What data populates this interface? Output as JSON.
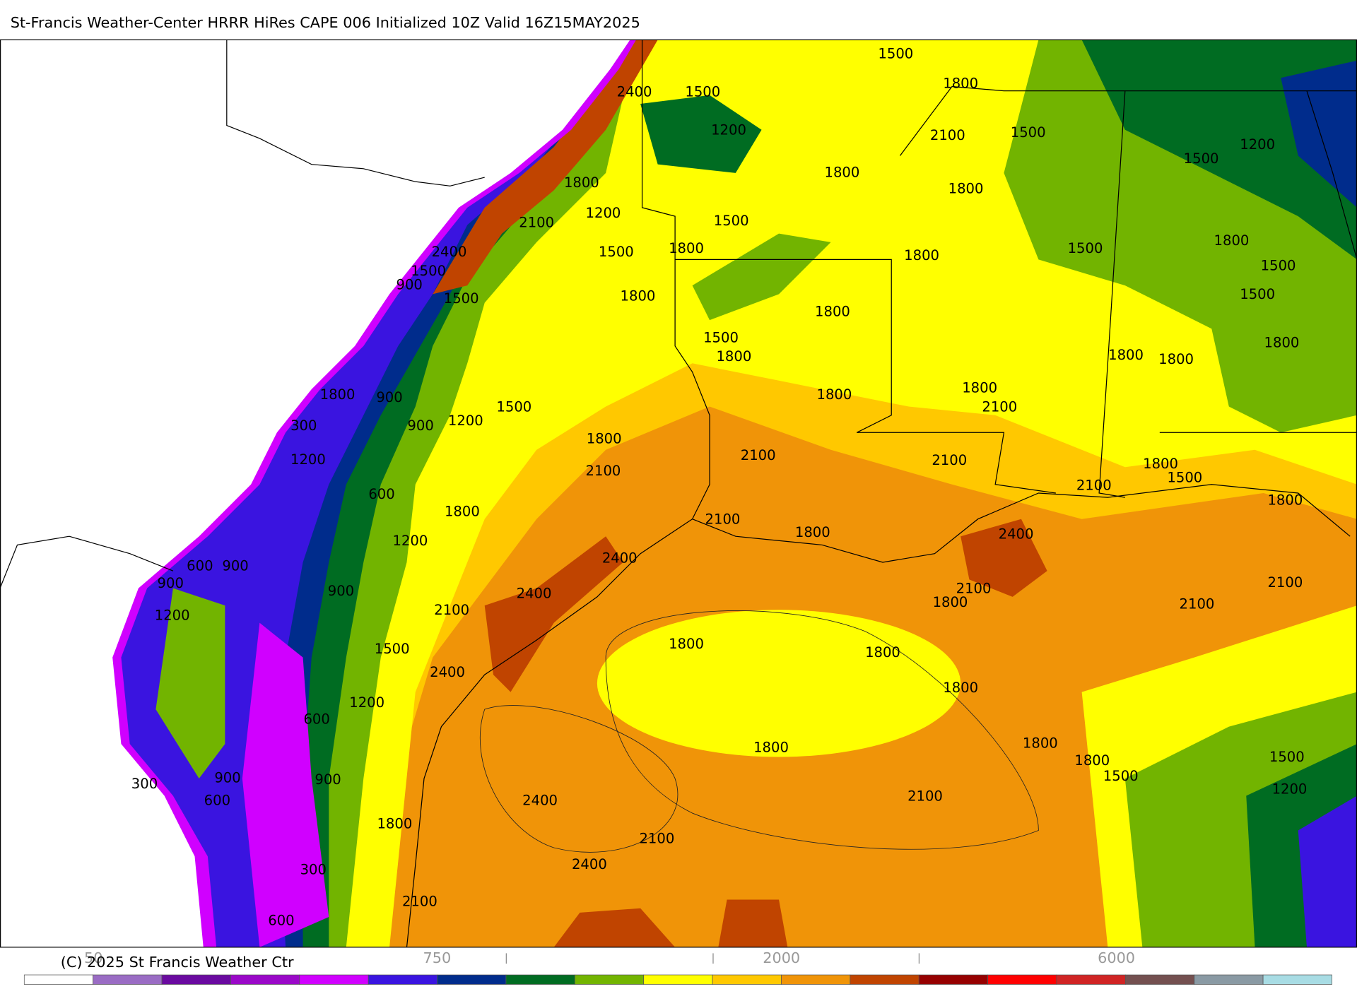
{
  "map": {
    "title": "St-Francis Weather-Center HRRR HiRes CAPE  006 Initialized  10Z Valid 16Z15MAY2025",
    "copyright": "(C) 2025 St Francis Weather Ctr",
    "contour_labels": [
      "1500",
      "2400",
      "1500",
      "1800",
      "1200",
      "2100",
      "1500",
      "1500",
      "1200",
      "1800",
      "1800",
      "1800",
      "1200",
      "2100",
      "1500",
      "1800",
      "1500",
      "2400",
      "1500",
      "1800",
      "1800",
      "1500",
      "1500",
      "900",
      "1500",
      "1800",
      "1500",
      "1800",
      "1500",
      "1800",
      "1800",
      "1800",
      "1800",
      "1800",
      "1800",
      "900",
      "1800",
      "2100",
      "1500",
      "300",
      "900",
      "1200",
      "1800",
      "2100",
      "2100",
      "1200",
      "1800",
      "1500",
      "2100",
      "2100",
      "600",
      "1800",
      "1800",
      "2100",
      "1800",
      "2400",
      "1200",
      "600",
      "900",
      "2400",
      "900",
      "2100",
      "2400",
      "900",
      "1800",
      "2100",
      "2100",
      "1200",
      "2100",
      "1500",
      "1800",
      "1800",
      "2400",
      "1800",
      "1200",
      "600",
      "1800",
      "1800",
      "1800",
      "1500",
      "900",
      "300",
      "900",
      "1500",
      "1200",
      "600",
      "2400",
      "2100",
      "1800",
      "2100",
      "2400",
      "300",
      "2100",
      "600"
    ],
    "colorbar": {
      "labels": [
        "50",
        "750",
        "2000",
        "6000"
      ],
      "colors": [
        "#ffffff",
        "#9a6cc4",
        "#6a0aa0",
        "#9a08c8",
        "#d000ff",
        "#3a14e0",
        "#002c8c",
        "#006c22",
        "#72b400",
        "#ffff00",
        "#ffc800",
        "#f09408",
        "#c04400",
        "#960000",
        "#ff0000",
        "#d02424",
        "#745050",
        "#8a9aa4",
        "#a8dce4"
      ]
    }
  }
}
